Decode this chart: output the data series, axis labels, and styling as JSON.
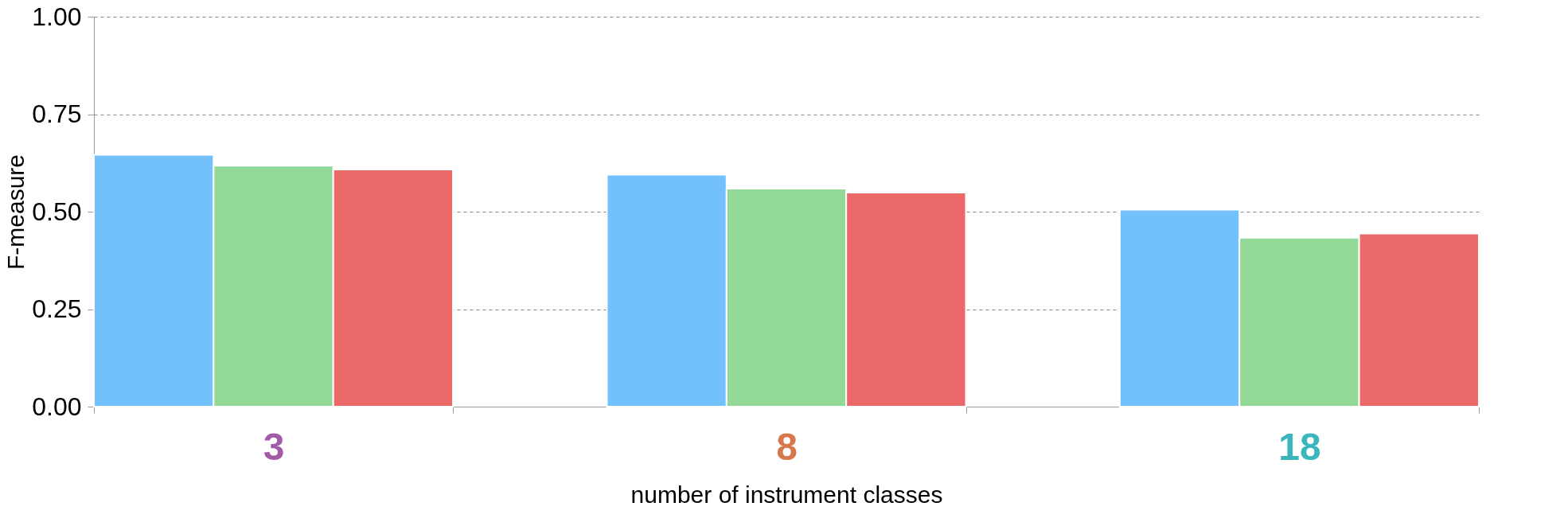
{
  "chart_data": {
    "type": "bar",
    "xlabel": "number of instrument classes",
    "ylabel": "F-measure",
    "categories": [
      "3",
      "8",
      "18"
    ],
    "series": [
      {
        "color": "#72c1fd",
        "values": [
          0.646,
          0.595,
          0.505
        ]
      },
      {
        "color": "#92d998",
        "values": [
          0.618,
          0.559,
          0.433
        ]
      },
      {
        "color": "#eb6a69",
        "values": [
          0.608,
          0.549,
          0.444
        ]
      }
    ],
    "ylim": [
      0,
      1
    ],
    "yticks": [
      {
        "value": 0,
        "label": "0.00"
      },
      {
        "value": 0.25,
        "label": "0.25"
      },
      {
        "value": 0.5,
        "label": "0.50"
      },
      {
        "value": 0.75,
        "label": "0.75"
      },
      {
        "value": 1,
        "label": "1.00"
      }
    ],
    "grid": "y",
    "legend": false
  }
}
